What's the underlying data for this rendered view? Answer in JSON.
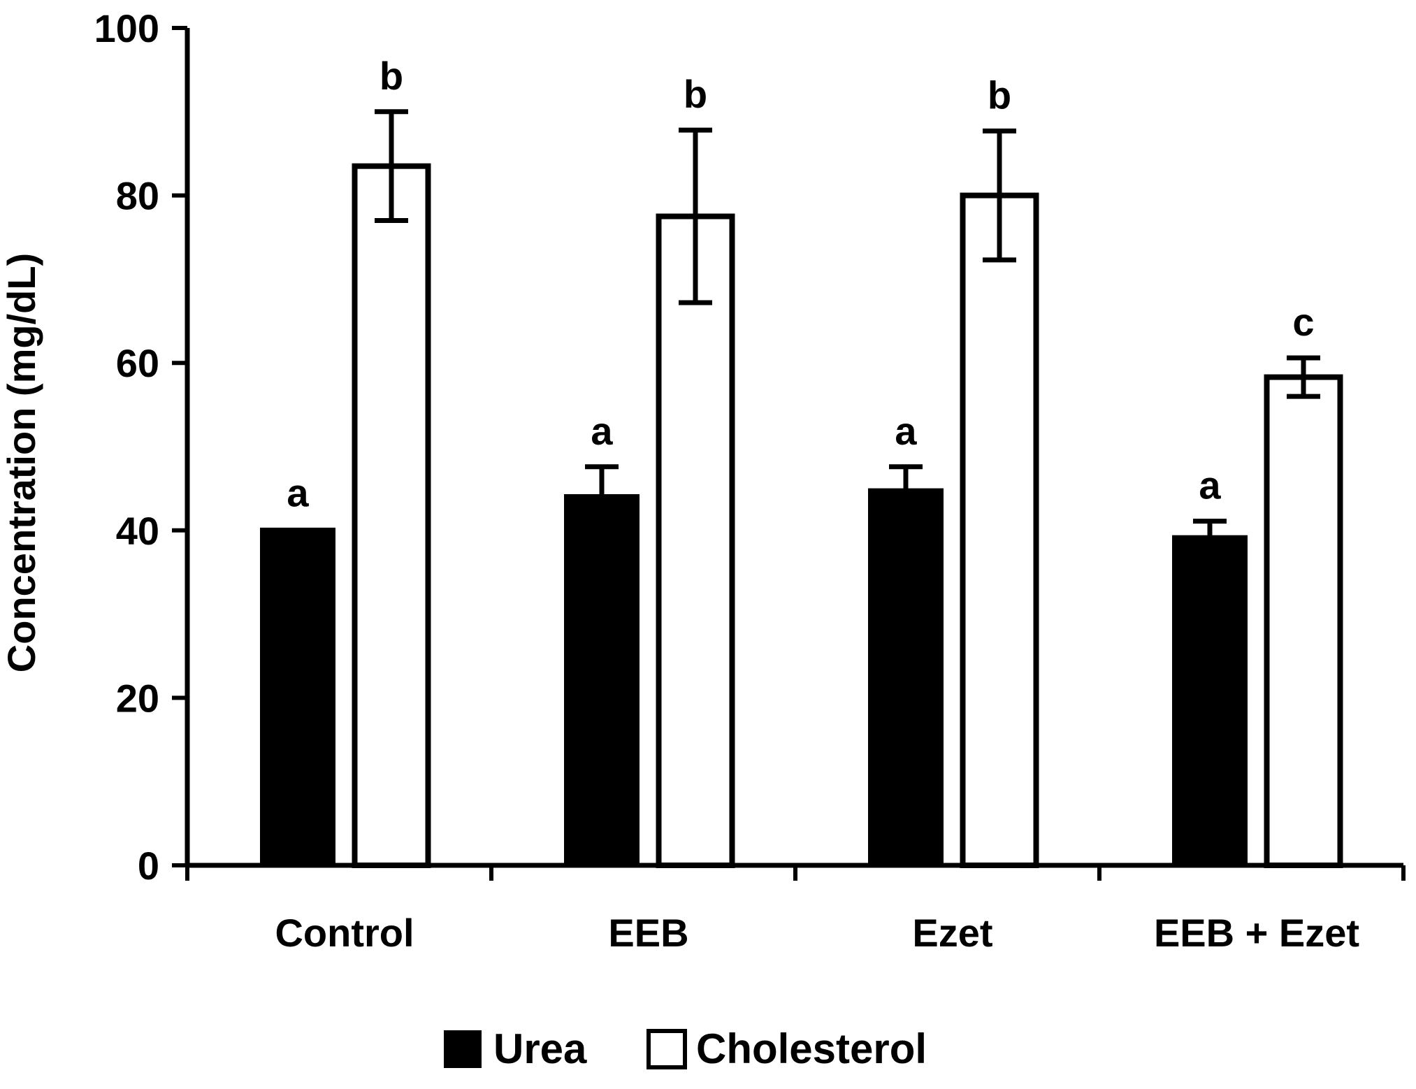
{
  "chart_data": {
    "type": "bar",
    "title": "",
    "xlabel": "",
    "ylabel": "Concentration (mg/dL)",
    "ylim": [
      0,
      100
    ],
    "yticks": [
      0,
      20,
      40,
      60,
      80,
      100
    ],
    "grid": false,
    "legend_position": "bottom-center",
    "categories": [
      "Control",
      "EEB",
      "Ezet",
      "EEB + Ezet"
    ],
    "series": [
      {
        "name": "Urea",
        "fill": "#000000",
        "values": [
          40.2,
          44.2,
          44.9,
          39.3
        ],
        "errors": [
          0,
          3.4,
          2.7,
          1.8
        ],
        "labels": [
          "a",
          "a",
          "a",
          "a"
        ]
      },
      {
        "name": "Cholesterol",
        "fill": "#ffffff",
        "values": [
          83.5,
          77.5,
          80.0,
          58.3
        ],
        "errors": [
          6.5,
          10.3,
          7.7,
          2.3
        ],
        "labels": [
          "b",
          "b",
          "b",
          "c"
        ]
      }
    ]
  }
}
